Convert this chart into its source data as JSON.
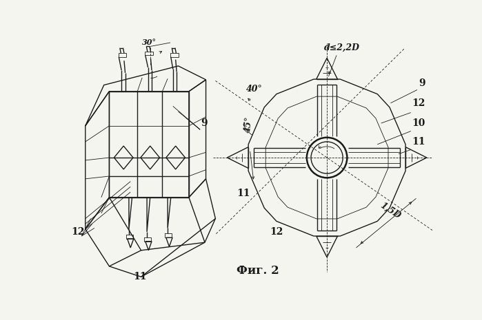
{
  "bg_color": "#f5f5f0",
  "line_color": "#1a1a1a",
  "lw_thick": 1.5,
  "lw_med": 1.0,
  "lw_thin": 0.6,
  "fig_label": "Фиг. 2"
}
